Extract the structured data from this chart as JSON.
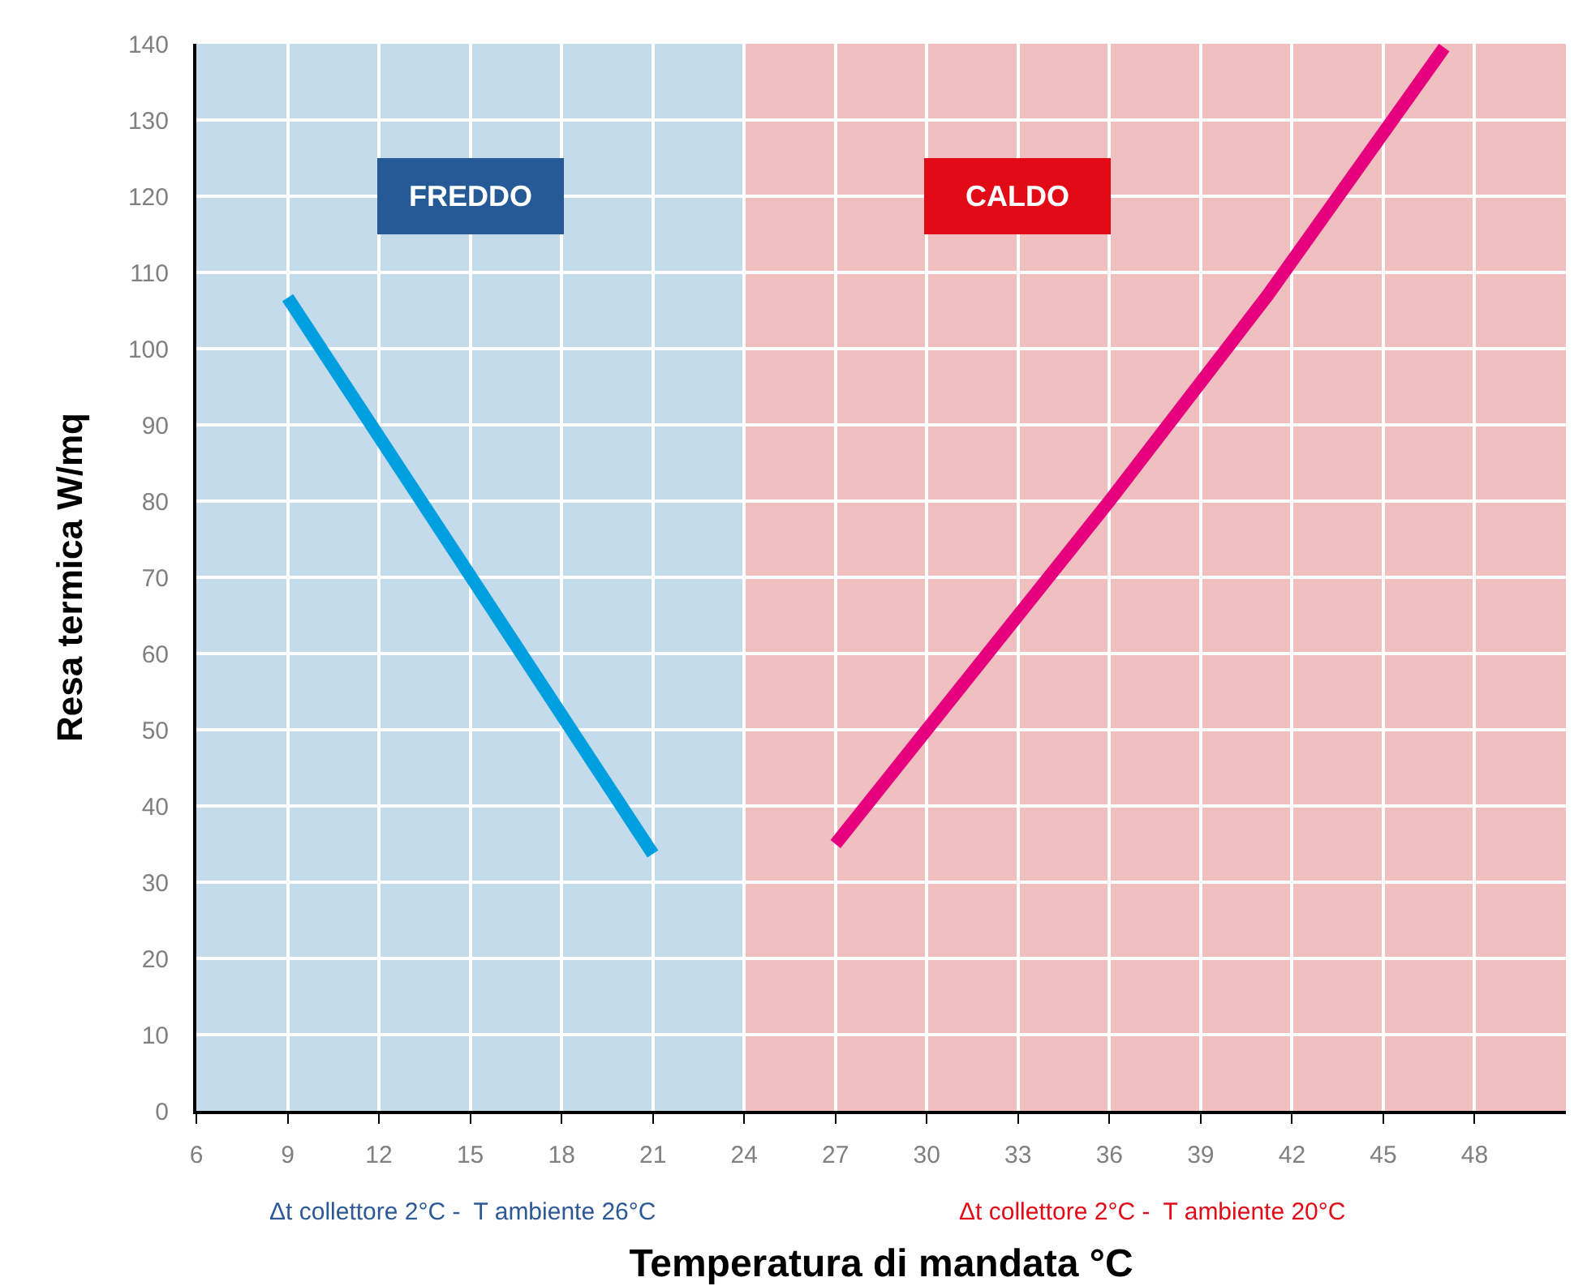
{
  "chart_data": {
    "type": "line",
    "xlabel": "Temperatura di mandata °C",
    "ylabel": "Resa termica W/mq",
    "xlim": [
      6,
      51
    ],
    "xticks": [
      6,
      9,
      12,
      15,
      18,
      21,
      24,
      27,
      30,
      33,
      36,
      39,
      42,
      45,
      48
    ],
    "ylim": [
      0,
      140
    ],
    "yticks": [
      0,
      10,
      20,
      30,
      40,
      50,
      60,
      70,
      80,
      90,
      100,
      110,
      120,
      130,
      140
    ],
    "grid": true,
    "marker": "none",
    "line_style": "solid",
    "series": [
      {
        "color": "#009fe0",
        "x": [
          9,
          21
        ],
        "values": [
          106.7,
          33.7
        ]
      },
      {
        "color": "#e6007e",
        "x": [
          27,
          30,
          36,
          41.2,
          47
        ],
        "values": [
          35,
          50,
          80,
          107,
          139.5
        ]
      }
    ],
    "bands": [
      {
        "axis": "x",
        "from": 6,
        "to": 24,
        "label": "FREDDO",
        "color": "#c4dbec"
      },
      {
        "axis": "x",
        "from": 24,
        "to": 51,
        "label": "CALDO",
        "color": "#f0bfbf"
      }
    ],
    "annotations": [
      "Δt collettore 2°C -  T ambiente 26°C",
      "Δt collettore 2°C -  T ambiente 20°C"
    ]
  }
}
